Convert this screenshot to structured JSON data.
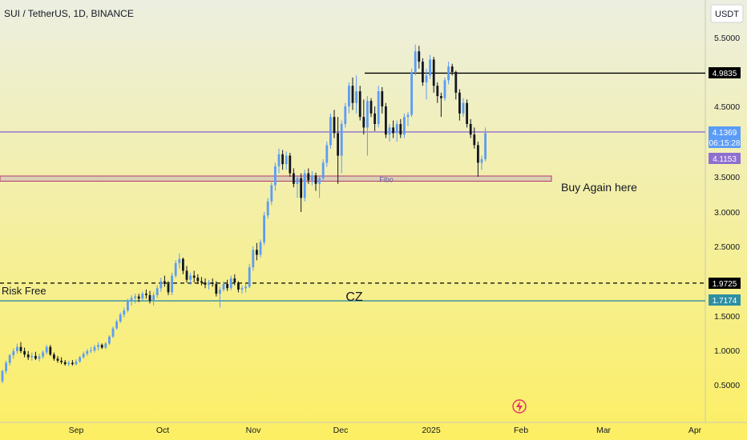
{
  "header": {
    "symbol_title": "SUI / TetherUS, 1D, BINANCE"
  },
  "currency_button": "USDT",
  "colors": {
    "bg_top": "#ecefe0",
    "bg_bottom": "#fcef63",
    "up": "#5b9cf6",
    "down": "#131722",
    "lilac": "#8e6fd0",
    "teal": "#2e8fa3",
    "black": "#000000"
  },
  "chart_data": {
    "type": "candlestick",
    "title": "SUI / TetherUS, 1D, BINANCE",
    "ylim": [
      0.0,
      5.7
    ],
    "y_ticks": [
      "5.5000",
      "4.5000",
      "3.5000",
      "3.0000",
      "2.5000",
      "1.5000",
      "1.0000",
      "0.5000"
    ],
    "x_ticks": [
      "Sep",
      "Oct",
      "Nov",
      "Dec",
      "2025",
      "Feb",
      "Mar",
      "Apr"
    ],
    "price_labels": [
      {
        "value": "4.9835",
        "style": "black"
      },
      {
        "value": "4.1369",
        "style": "blue"
      },
      {
        "value": "06:15:28",
        "style": "blue"
      },
      {
        "value": "4.1153",
        "style": "lilac"
      },
      {
        "value": "1.9725",
        "style": "black"
      },
      {
        "value": "1.7174",
        "style": "teal"
      }
    ],
    "horizontal_lines": [
      {
        "price": 4.9835,
        "style": "solid-black"
      },
      {
        "price": 4.1369,
        "style": "solid-lilac"
      },
      {
        "price": 1.9725,
        "style": "dashed-black"
      },
      {
        "price": 1.7174,
        "style": "solid-teal"
      }
    ],
    "zone": {
      "price_top": 3.5,
      "price_bottom": 3.46,
      "label": "Fibo"
    },
    "annotations": [
      "Buy Again here",
      "Risk Free",
      "CZ"
    ],
    "candles": [
      [
        0.55,
        0.72,
        0.52,
        0.7
      ],
      [
        0.7,
        0.85,
        0.66,
        0.82
      ],
      [
        0.82,
        0.95,
        0.78,
        0.93
      ],
      [
        0.93,
        1.03,
        0.88,
        0.99
      ],
      [
        0.99,
        1.1,
        0.95,
        1.05
      ],
      [
        1.05,
        1.12,
        0.96,
        0.99
      ],
      [
        0.99,
        1.04,
        0.9,
        0.94
      ],
      [
        0.94,
        0.99,
        0.86,
        0.9
      ],
      [
        0.9,
        0.97,
        0.85,
        0.92
      ],
      [
        0.92,
        0.98,
        0.86,
        0.88
      ],
      [
        0.88,
        0.95,
        0.84,
        0.91
      ],
      [
        0.91,
        1.0,
        0.88,
        0.97
      ],
      [
        0.97,
        1.08,
        0.94,
        1.05
      ],
      [
        1.05,
        1.08,
        0.92,
        0.94
      ],
      [
        0.94,
        0.97,
        0.85,
        0.88
      ],
      [
        0.88,
        0.92,
        0.82,
        0.85
      ],
      [
        0.85,
        0.9,
        0.8,
        0.83
      ],
      [
        0.83,
        0.86,
        0.78,
        0.8
      ],
      [
        0.8,
        0.85,
        0.77,
        0.82
      ],
      [
        0.82,
        0.86,
        0.78,
        0.8
      ],
      [
        0.8,
        0.87,
        0.78,
        0.84
      ],
      [
        0.84,
        0.92,
        0.82,
        0.9
      ],
      [
        0.9,
        0.98,
        0.88,
        0.95
      ],
      [
        0.95,
        1.02,
        0.92,
        0.99
      ],
      [
        0.99,
        1.05,
        0.96,
        1.0
      ],
      [
        1.0,
        1.08,
        0.97,
        1.05
      ],
      [
        1.05,
        1.12,
        1.0,
        1.08
      ],
      [
        1.08,
        1.1,
        1.02,
        1.04
      ],
      [
        1.04,
        1.12,
        1.02,
        1.1
      ],
      [
        1.1,
        1.22,
        1.08,
        1.2
      ],
      [
        1.2,
        1.35,
        1.18,
        1.32
      ],
      [
        1.32,
        1.45,
        1.3,
        1.42
      ],
      [
        1.42,
        1.55,
        1.4,
        1.52
      ],
      [
        1.52,
        1.62,
        1.48,
        1.58
      ],
      [
        1.58,
        1.75,
        1.55,
        1.72
      ],
      [
        1.72,
        1.8,
        1.65,
        1.76
      ],
      [
        1.76,
        1.82,
        1.68,
        1.78
      ],
      [
        1.78,
        1.82,
        1.7,
        1.75
      ],
      [
        1.75,
        1.85,
        1.72,
        1.82
      ],
      [
        1.82,
        1.88,
        1.75,
        1.8
      ],
      [
        1.8,
        1.86,
        1.68,
        1.72
      ],
      [
        1.72,
        1.84,
        1.65,
        1.8
      ],
      [
        1.8,
        1.94,
        1.76,
        1.9
      ],
      [
        1.9,
        2.05,
        1.85,
        2.0
      ],
      [
        2.0,
        2.08,
        1.92,
        1.96
      ],
      [
        1.96,
        2.0,
        1.8,
        1.84
      ],
      [
        1.84,
        2.12,
        1.8,
        2.08
      ],
      [
        2.08,
        2.3,
        2.05,
        2.26
      ],
      [
        2.26,
        2.4,
        2.18,
        2.32
      ],
      [
        2.32,
        2.34,
        2.1,
        2.15
      ],
      [
        2.15,
        2.22,
        1.98,
        2.02
      ],
      [
        2.02,
        2.12,
        1.95,
        2.08
      ],
      [
        2.08,
        2.15,
        1.98,
        2.05
      ],
      [
        2.05,
        2.1,
        1.96,
        2.0
      ],
      [
        2.0,
        2.06,
        1.94,
        1.98
      ],
      [
        1.98,
        2.04,
        1.9,
        1.95
      ],
      [
        1.95,
        2.02,
        1.88,
        1.98
      ],
      [
        1.98,
        2.04,
        1.92,
        1.96
      ],
      [
        1.96,
        2.0,
        1.78,
        1.82
      ],
      [
        1.82,
        1.92,
        1.62,
        1.88
      ],
      [
        1.88,
        2.0,
        1.85,
        1.96
      ],
      [
        1.96,
        2.02,
        1.86,
        1.9
      ],
      [
        1.9,
        2.08,
        1.87,
        2.04
      ],
      [
        2.04,
        2.1,
        1.94,
        1.98
      ],
      [
        1.98,
        2.0,
        1.84,
        1.88
      ],
      [
        1.88,
        1.94,
        1.82,
        1.9
      ],
      [
        1.9,
        1.96,
        1.84,
        1.92
      ],
      [
        1.92,
        2.25,
        1.9,
        2.2
      ],
      [
        2.2,
        2.5,
        2.15,
        2.45
      ],
      [
        2.45,
        2.55,
        2.3,
        2.38
      ],
      [
        2.38,
        2.6,
        2.34,
        2.56
      ],
      [
        2.56,
        3.0,
        2.52,
        2.95
      ],
      [
        2.95,
        3.2,
        2.9,
        3.15
      ],
      [
        3.15,
        3.42,
        3.1,
        3.38
      ],
      [
        3.38,
        3.7,
        3.3,
        3.65
      ],
      [
        3.65,
        3.9,
        3.55,
        3.82
      ],
      [
        3.82,
        3.88,
        3.6,
        3.68
      ],
      [
        3.68,
        3.86,
        3.6,
        3.8
      ],
      [
        3.8,
        3.84,
        3.5,
        3.55
      ],
      [
        3.55,
        3.62,
        3.35,
        3.4
      ],
      [
        3.4,
        3.52,
        3.2,
        3.48
      ],
      [
        3.48,
        3.55,
        3.0,
        3.2
      ],
      [
        3.2,
        3.6,
        3.15,
        3.55
      ],
      [
        3.55,
        3.62,
        3.4,
        3.45
      ],
      [
        3.45,
        3.58,
        3.38,
        3.52
      ],
      [
        3.52,
        3.56,
        3.3,
        3.4
      ],
      [
        3.4,
        3.52,
        3.2,
        3.48
      ],
      [
        3.48,
        3.75,
        3.44,
        3.7
      ],
      [
        3.7,
        4.0,
        3.64,
        3.95
      ],
      [
        3.95,
        4.4,
        3.9,
        4.35
      ],
      [
        4.35,
        4.45,
        4.05,
        4.12
      ],
      [
        4.12,
        4.35,
        3.4,
        3.8
      ],
      [
        3.8,
        4.3,
        3.55,
        4.25
      ],
      [
        4.25,
        4.55,
        4.2,
        4.5
      ],
      [
        4.5,
        4.85,
        4.4,
        4.8
      ],
      [
        4.8,
        4.92,
        4.45,
        4.55
      ],
      [
        4.55,
        4.95,
        4.4,
        4.72
      ],
      [
        4.72,
        4.8,
        4.3,
        4.35
      ],
      [
        4.35,
        4.6,
        4.1,
        4.2
      ],
      [
        4.2,
        4.65,
        3.8,
        4.58
      ],
      [
        4.58,
        4.62,
        4.35,
        4.4
      ],
      [
        4.4,
        4.5,
        4.15,
        4.25
      ],
      [
        4.25,
        4.8,
        4.2,
        4.72
      ],
      [
        4.72,
        4.78,
        4.4,
        4.5
      ],
      [
        4.5,
        4.55,
        4.05,
        4.1
      ],
      [
        4.1,
        4.25,
        4.0,
        4.2
      ],
      [
        4.2,
        4.3,
        4.05,
        4.12
      ],
      [
        4.12,
        4.3,
        4.0,
        4.25
      ],
      [
        4.25,
        4.32,
        4.05,
        4.1
      ],
      [
        4.1,
        4.4,
        4.05,
        4.35
      ],
      [
        4.35,
        4.42,
        4.22,
        4.38
      ],
      [
        4.38,
        5.05,
        4.35,
        5.0
      ],
      [
        5.0,
        5.4,
        4.95,
        5.3
      ],
      [
        5.3,
        5.38,
        5.05,
        5.15
      ],
      [
        5.15,
        5.2,
        4.8,
        4.85
      ],
      [
        4.85,
        5.05,
        4.6,
        4.95
      ],
      [
        4.95,
        5.25,
        4.9,
        5.18
      ],
      [
        5.18,
        5.22,
        4.7,
        4.8
      ],
      [
        4.8,
        4.85,
        4.55,
        4.65
      ],
      [
        4.65,
        4.7,
        4.35,
        4.62
      ],
      [
        4.62,
        4.92,
        4.58,
        4.88
      ],
      [
        4.88,
        5.15,
        4.82,
        5.08
      ],
      [
        5.08,
        5.12,
        4.95,
        5.0
      ],
      [
        5.0,
        5.02,
        4.6,
        4.7
      ],
      [
        4.7,
        4.75,
        4.3,
        4.4
      ],
      [
        4.4,
        4.62,
        4.35,
        4.55
      ],
      [
        4.55,
        4.6,
        4.2,
        4.25
      ],
      [
        4.25,
        4.32,
        4.05,
        4.1
      ],
      [
        4.1,
        4.2,
        3.9,
        3.95
      ],
      [
        3.95,
        4.0,
        3.5,
        3.7
      ],
      [
        3.7,
        3.8,
        3.6,
        3.75
      ],
      [
        3.75,
        4.2,
        3.72,
        4.12
      ]
    ]
  }
}
